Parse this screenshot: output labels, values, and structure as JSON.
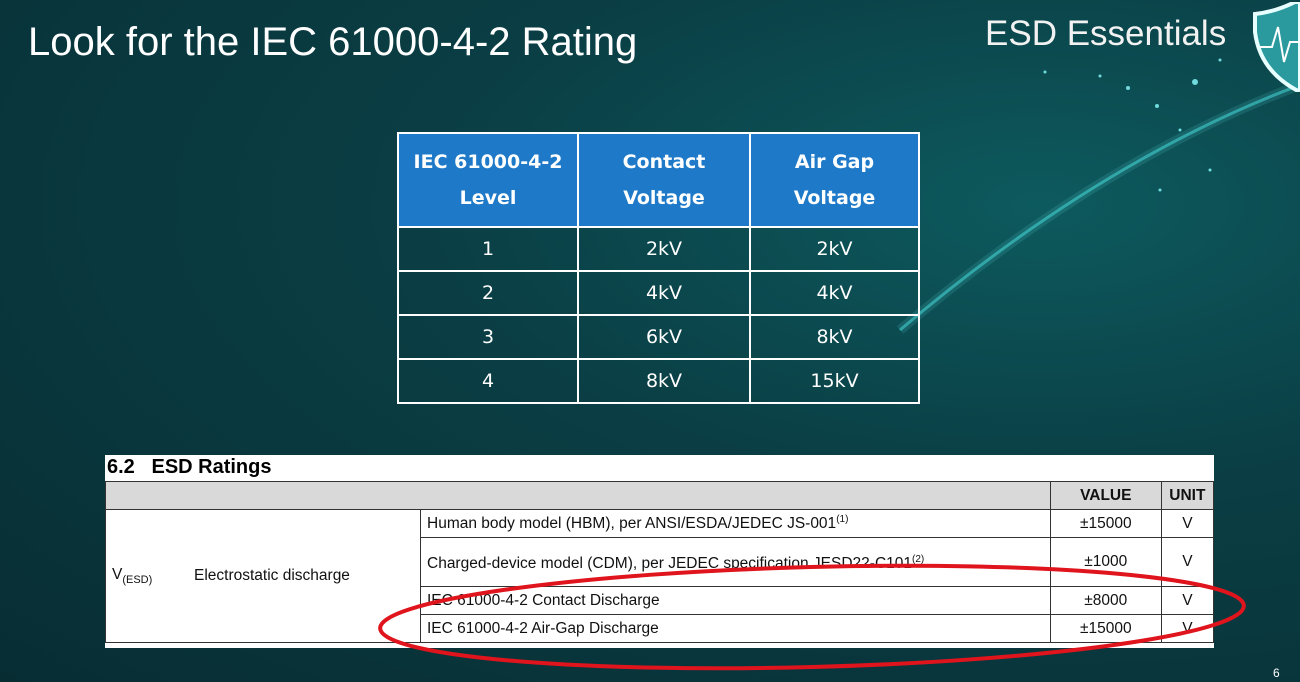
{
  "slide": {
    "title": "Look for the IEC 61000-4-2 Rating",
    "brand": "ESD Essentials",
    "page_number": "6",
    "logo_icon": "shield-heartbeat-icon"
  },
  "iec_table": {
    "headers": [
      "IEC 61000-4-2 Level",
      "Contact Voltage",
      "Air Gap Voltage"
    ],
    "header_lines": [
      [
        "IEC 61000-4-2",
        "Level"
      ],
      [
        "Contact",
        "Voltage"
      ],
      [
        "Air Gap",
        "Voltage"
      ]
    ],
    "rows": [
      [
        "1",
        "2kV",
        "2kV"
      ],
      [
        "2",
        "4kV",
        "4kV"
      ],
      [
        "3",
        "6kV",
        "8kV"
      ],
      [
        "4",
        "8kV",
        "15kV"
      ]
    ],
    "header_color": "#1e7ac8"
  },
  "esd_ratings": {
    "section": "6.2   ESD Ratings",
    "col_value": "VALUE",
    "col_unit": "UNIT",
    "symbol": "V",
    "symbol_sub": "(ESD)",
    "parameter": "Electrostatic discharge",
    "rows": [
      {
        "condition": "Human body model (HBM), per ANSI/ESDA/JEDEC JS-001",
        "note": "(1)",
        "value": "±15000",
        "unit": "V"
      },
      {
        "condition": "Charged-device model (CDM), per JEDEC specification JESD22-C101",
        "note": "(2)",
        "value": "±1000",
        "unit": "V"
      },
      {
        "condition": "IEC 61000-4-2 Contact Discharge",
        "note": "",
        "value": "±8000",
        "unit": "V"
      },
      {
        "condition": "IEC 61000-4-2 Air-Gap Discharge",
        "note": "",
        "value": "±15000",
        "unit": "V"
      }
    ],
    "highlight_color": "#e0141c"
  }
}
